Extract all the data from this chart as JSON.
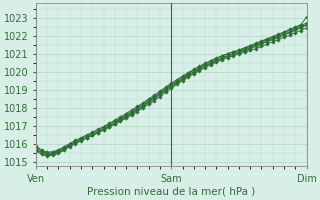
{
  "title": "",
  "xlabel": "Pression niveau de la mer( hPa )",
  "ylabel": "",
  "background_color": "#d8efe8",
  "grid_color": "#b0d8c8",
  "line_color": "#2d6e35",
  "ylim": [
    1014.8,
    1023.8
  ],
  "xlim": [
    0,
    48
  ],
  "yticks": [
    1015,
    1016,
    1017,
    1018,
    1019,
    1020,
    1021,
    1022,
    1023
  ],
  "xtick_positions": [
    0,
    24,
    48
  ],
  "xtick_labels": [
    "Ven",
    "Sam",
    "Dim"
  ],
  "num_points": 49,
  "series": [
    [
      1015.7,
      1015.55,
      1015.45,
      1015.5,
      1015.6,
      1015.75,
      1015.95,
      1016.1,
      1016.25,
      1016.38,
      1016.52,
      1016.65,
      1016.8,
      1016.95,
      1017.12,
      1017.28,
      1017.45,
      1017.62,
      1017.82,
      1018.02,
      1018.22,
      1018.42,
      1018.65,
      1018.88,
      1019.1,
      1019.32,
      1019.52,
      1019.72,
      1019.9,
      1020.08,
      1020.25,
      1020.4,
      1020.55,
      1020.68,
      1020.8,
      1020.9,
      1021.0,
      1021.1,
      1021.2,
      1021.3,
      1021.42,
      1021.55,
      1021.68,
      1021.8,
      1021.92,
      1022.05,
      1022.18,
      1022.3,
      1022.45
    ],
    [
      1015.85,
      1015.65,
      1015.5,
      1015.55,
      1015.65,
      1015.82,
      1016.0,
      1016.18,
      1016.32,
      1016.48,
      1016.62,
      1016.78,
      1016.94,
      1017.1,
      1017.28,
      1017.45,
      1017.64,
      1017.82,
      1018.02,
      1018.22,
      1018.44,
      1018.65,
      1018.88,
      1019.1,
      1019.32,
      1019.52,
      1019.72,
      1019.92,
      1020.1,
      1020.28,
      1020.45,
      1020.6,
      1020.75,
      1020.88,
      1021.0,
      1021.1,
      1021.2,
      1021.3,
      1021.42,
      1021.55,
      1021.68,
      1021.8,
      1021.92,
      1022.05,
      1022.18,
      1022.32,
      1022.45,
      1022.58,
      1022.72
    ],
    [
      1015.65,
      1015.45,
      1015.35,
      1015.4,
      1015.5,
      1015.68,
      1015.88,
      1016.05,
      1016.2,
      1016.35,
      1016.5,
      1016.65,
      1016.82,
      1016.98,
      1017.15,
      1017.33,
      1017.52,
      1017.7,
      1017.9,
      1018.1,
      1018.32,
      1018.52,
      1018.75,
      1018.98,
      1019.2,
      1019.4,
      1019.6,
      1019.8,
      1019.98,
      1020.15,
      1020.32,
      1020.47,
      1020.62,
      1020.75,
      1020.87,
      1020.98,
      1021.08,
      1021.18,
      1021.3,
      1021.42,
      1021.55,
      1021.68,
      1021.8,
      1021.92,
      1022.05,
      1022.18,
      1022.32,
      1022.45,
      1022.6
    ],
    [
      1015.75,
      1015.55,
      1015.42,
      1015.45,
      1015.57,
      1015.72,
      1015.92,
      1016.08,
      1016.22,
      1016.38,
      1016.54,
      1016.7,
      1016.86,
      1017.02,
      1017.2,
      1017.38,
      1017.57,
      1017.76,
      1017.96,
      1018.16,
      1018.38,
      1018.58,
      1018.8,
      1019.02,
      1019.24,
      1019.44,
      1019.64,
      1019.84,
      1020.02,
      1020.2,
      1020.37,
      1020.52,
      1020.66,
      1020.79,
      1020.91,
      1021.02,
      1021.12,
      1021.23,
      1021.35,
      1021.48,
      1021.6,
      1021.73,
      1021.85,
      1021.97,
      1022.1,
      1022.23,
      1022.37,
      1022.5,
      1022.65
    ],
    [
      1015.9,
      1015.7,
      1015.57,
      1015.6,
      1015.7,
      1015.87,
      1016.05,
      1016.22,
      1016.37,
      1016.52,
      1016.67,
      1016.83,
      1016.99,
      1017.16,
      1017.34,
      1017.52,
      1017.71,
      1017.9,
      1018.1,
      1018.3,
      1018.52,
      1018.72,
      1018.95,
      1019.17,
      1019.38,
      1019.58,
      1019.78,
      1019.97,
      1020.15,
      1020.32,
      1020.49,
      1020.64,
      1020.78,
      1020.91,
      1021.03,
      1021.13,
      1021.23,
      1021.35,
      1021.47,
      1021.6,
      1021.72,
      1021.85,
      1021.97,
      1022.1,
      1022.23,
      1022.37,
      1022.5,
      1022.63,
      1023.05
    ]
  ]
}
